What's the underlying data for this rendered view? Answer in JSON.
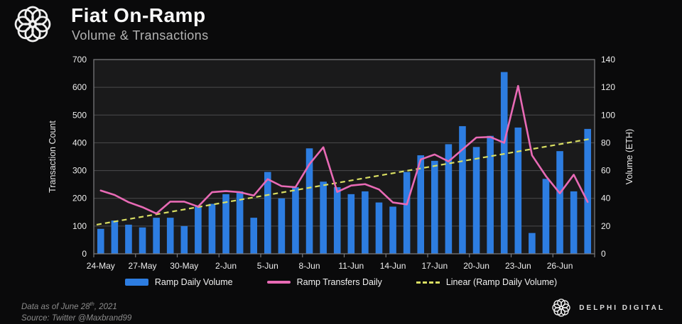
{
  "header": {
    "logo_icon": "delphi-circular-knot-logo"
  },
  "chart_data": {
    "type": "combo",
    "title": "Fiat On-Ramp",
    "subtitle": "Volume & Transactions",
    "dates": [
      "24-May",
      "25-May",
      "26-May",
      "27-May",
      "28-May",
      "29-May",
      "30-May",
      "31-May",
      "1-Jun",
      "2-Jun",
      "3-Jun",
      "4-Jun",
      "5-Jun",
      "6-Jun",
      "7-Jun",
      "8-Jun",
      "9-Jun",
      "10-Jun",
      "11-Jun",
      "12-Jun",
      "13-Jun",
      "14-Jun",
      "15-Jun",
      "16-Jun",
      "17-Jun",
      "18-Jun",
      "19-Jun",
      "20-Jun",
      "21-Jun",
      "22-Jun",
      "23-Jun",
      "24-Jun",
      "25-Jun",
      "26-Jun",
      "27-Jun",
      "28-Jun"
    ],
    "x_tick_labels": [
      "24-May",
      "27-May",
      "30-May",
      "2-Jun",
      "5-Jun",
      "8-Jun",
      "11-Jun",
      "14-Jun",
      "17-Jun",
      "20-Jun",
      "23-Jun",
      "26-Jun"
    ],
    "left_axis": {
      "label": "Transaction Count",
      "min": 0,
      "max": 700,
      "ticks": [
        0,
        100,
        200,
        300,
        400,
        500,
        600,
        700
      ]
    },
    "right_axis": {
      "label": "Volume (ETH)",
      "min": 0,
      "max": 140,
      "ticks": [
        0,
        20,
        40,
        60,
        80,
        100,
        120,
        140
      ]
    },
    "series": [
      {
        "name": "Ramp Daily Volume",
        "type": "bar",
        "axis": "right",
        "color": "#2d7de1",
        "values_eth": [
          18,
          24,
          21,
          19,
          26,
          26,
          20,
          34,
          36,
          43,
          45,
          26,
          59,
          40,
          48,
          76,
          52,
          48,
          43,
          45,
          37,
          34,
          59,
          71,
          67,
          79,
          92,
          77,
          85,
          131,
          91,
          15,
          54,
          74,
          45,
          90
        ]
      },
      {
        "name": "Ramp Transfers Daily",
        "type": "line",
        "axis": "left",
        "color": "#e86ab5",
        "values": [
          228,
          212,
          186,
          168,
          145,
          188,
          188,
          170,
          222,
          226,
          222,
          210,
          269,
          244,
          240,
          323,
          384,
          223,
          246,
          251,
          232,
          185,
          178,
          340,
          358,
          333,
          376,
          419,
          421,
          400,
          605,
          355,
          280,
          218,
          285,
          187
        ]
      },
      {
        "name": "Linear (Ramp Daily Volume)",
        "type": "linear_trend",
        "axis": "right",
        "color": "#d9de62",
        "start_eth": 21,
        "end_eth": 83
      }
    ],
    "layout": {
      "plot_bg": "#1a1a1b",
      "page_bg": "#0a0a0b",
      "grid_color": "#4b4b4d",
      "border_color": "#77777a",
      "tick_text_color": "#ededed",
      "grid": "horizontal",
      "legend_position": "bottom"
    }
  },
  "footer": {
    "note_prefix": "Data as of June 28",
    "note_sup": "th",
    "note_suffix": ", 2021",
    "source": "Source: Twitter @Maxbrand99",
    "brand": "DELPHI DIGITAL",
    "brand_icon": "delphi-circular-knot-logo"
  }
}
